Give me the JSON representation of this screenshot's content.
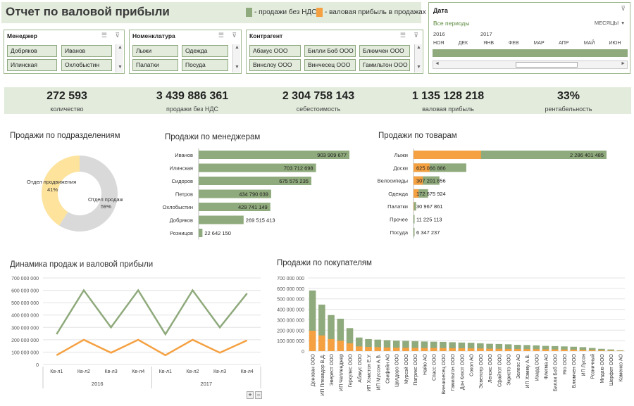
{
  "header": {
    "title": "Отчет по валовой прибыли",
    "legend": [
      {
        "label": "- продажи без НДС,",
        "color": "#8faa7c"
      },
      {
        "label": "- валовая прибыль в продажах",
        "color": "#f5a142"
      }
    ]
  },
  "slicers": {
    "manager": {
      "title": "Менеджер",
      "items": [
        "Добряков",
        "Иванов",
        "Илинская",
        "Охлобыстин"
      ]
    },
    "nomenclature": {
      "title": "Номенклатура",
      "items": [
        "Лыжи",
        "Одежда",
        "Палатки",
        "Посуда"
      ]
    },
    "counterparty": {
      "title": "Контрагент",
      "items": [
        "Абакус ООО",
        "Билли Боб ООО",
        "Блюмчен ООО",
        "Винслоу ООО",
        "Винчесец ООО",
        "Гамильтон ООО"
      ]
    },
    "icons": {
      "multiselect": "multiselect-icon",
      "clear": "clear-filter-icon"
    }
  },
  "date_filter": {
    "title": "Дата",
    "all_periods": "Все периоды",
    "granularity": "МЕСЯЦЫ",
    "years": [
      "2016",
      "2017"
    ],
    "months": [
      "НОЯ",
      "ДЕК",
      "ЯНВ",
      "ФЕВ",
      "МАР",
      "АПР",
      "МАЙ",
      "ИЮН"
    ]
  },
  "kpis": [
    {
      "value": "272 593",
      "label": "количество"
    },
    {
      "value": "3 439 886 361",
      "label": "продажи без НДС"
    },
    {
      "value": "2 304 758 143",
      "label": "себестоимость"
    },
    {
      "value": "1 135 128 218",
      "label": "валовая прибыль"
    },
    {
      "value": "33%",
      "label": "рентабельность"
    }
  ],
  "colors": {
    "sales": "#8faa7c",
    "profit": "#f5a142",
    "donut_a": "#fde39c",
    "donut_b": "#d9d9d9"
  },
  "chart_data": [
    {
      "type": "pie",
      "title": "Продажи по подразделениям",
      "slices": [
        {
          "label": "Отдел продвижения",
          "pct_label": "41%",
          "value": 41
        },
        {
          "label": "Отдел продаж",
          "pct_label": "59%",
          "value": 59
        }
      ]
    },
    {
      "type": "bar",
      "title": "Продажи по менеджерам",
      "categories": [
        "Иванов",
        "Илинская",
        "Сидоров",
        "Петров",
        "Охлобыстин",
        "Добряков",
        "Розницов"
      ],
      "values": [
        903909677,
        703712698,
        675575235,
        434790039,
        429741149,
        269515413,
        22642150
      ],
      "value_labels": [
        "903 909 677",
        "703 712 698",
        "675 575 235",
        "434 790 039",
        "429 741 149",
        "269 515 413",
        "22 642 150"
      ]
    },
    {
      "type": "bar",
      "title": "Продажи по товарам",
      "categories": [
        "Лыжи",
        "Доски",
        "Велосипеды",
        "Одежда",
        "Палатки",
        "Прочее",
        "Посуда"
      ],
      "values": [
        2286401485,
        625066886,
        307201856,
        172675924,
        30967861,
        11225113,
        6347237
      ],
      "profit": [
        800000000,
        190000000,
        110000000,
        60000000,
        5000000,
        2000000,
        1000000
      ],
      "value_labels": [
        "2 286 401 485",
        "625 066 886",
        "307 201 856",
        "172 675 924",
        "30 967 861",
        "11 225 113",
        "6 347 237"
      ]
    },
    {
      "type": "line",
      "title": "Динамика продаж и валовой прибыли",
      "categories": [
        "Кв-л1",
        "Кв-л2",
        "Кв-л3",
        "Кв-л4",
        "Кв-л1",
        "Кв-л2",
        "Кв-л3",
        "Кв-л4"
      ],
      "groups": [
        {
          "label": "2016",
          "span": 4
        },
        {
          "label": "2017",
          "span": 4
        }
      ],
      "series": [
        {
          "values": [
            245000000,
            600000000,
            300000000,
            600000000,
            245000000,
            600000000,
            300000000,
            575000000
          ]
        },
        {
          "values": [
            75000000,
            200000000,
            95000000,
            200000000,
            75000000,
            200000000,
            95000000,
            195000000
          ]
        }
      ],
      "ylim": [
        0,
        700000000
      ],
      "yticks": [
        "0",
        "100 000 000",
        "200 000 000",
        "300 000 000",
        "400 000 000",
        "500 000 000",
        "600 000 000",
        "700 000 000"
      ],
      "zoom_buttons": [
        "+",
        "−"
      ]
    },
    {
      "type": "bar",
      "title": "Продажи по покупателям",
      "categories": [
        "Донован ООО",
        "ИП Плеавдор В.Д.",
        "Эверест ООО",
        "ИП Челленджер",
        "Геркулес ООО",
        "Абакус ООО",
        "ИП Хэмстон Е.У.",
        "ИП Муссон А.В.",
        "Свифейн АО",
        "Целдоро ООО",
        "Мурсэй ООО",
        "Патрикс ООО",
        "Найю АО",
        "Спасс ООО",
        "Винчиоесец ООО",
        "Гамильтон ООО",
        "Дон Кихот ООО",
        "Сокол АО",
        "Эсвелотр ООО",
        "Ленокс ООО",
        "Сфайтот ООО",
        "Экристо ООО",
        "Зелеос АО",
        "ИП Хэмму А.В.",
        "Изард ООО",
        "Флегма АО",
        "Билли Боб ООО",
        "Яго ООО",
        "Блюмчен ООО",
        "ИП Лусон",
        "Розничный",
        "Млдаю ООО",
        "Шерфет ООО",
        "Каменко АО"
      ],
      "sales": [
        580000000,
        445000000,
        345000000,
        310000000,
        220000000,
        130000000,
        115000000,
        110000000,
        105000000,
        100000000,
        98000000,
        95000000,
        92000000,
        90000000,
        88000000,
        85000000,
        82000000,
        80000000,
        75000000,
        70000000,
        68000000,
        65000000,
        60000000,
        58000000,
        55000000,
        50000000,
        48000000,
        45000000,
        42000000,
        38000000,
        30000000,
        22000000,
        16000000,
        8000000
      ],
      "profit": [
        195000000,
        150000000,
        115000000,
        100000000,
        75000000,
        45000000,
        40000000,
        38000000,
        35000000,
        33000000,
        32000000,
        31000000,
        30000000,
        30000000,
        29000000,
        28000000,
        27000000,
        26000000,
        25000000,
        23000000,
        22000000,
        21000000,
        20000000,
        19000000,
        18000000,
        17000000,
        16000000,
        15000000,
        14000000,
        12000000,
        10000000,
        7000000,
        5000000,
        3000000
      ],
      "ylim": [
        0,
        700000000
      ],
      "yticks": [
        "0",
        "100 000 000",
        "200 000 000",
        "300 000 000",
        "400 000 000",
        "500 000 000",
        "600 000 000",
        "700 000 000"
      ]
    }
  ]
}
